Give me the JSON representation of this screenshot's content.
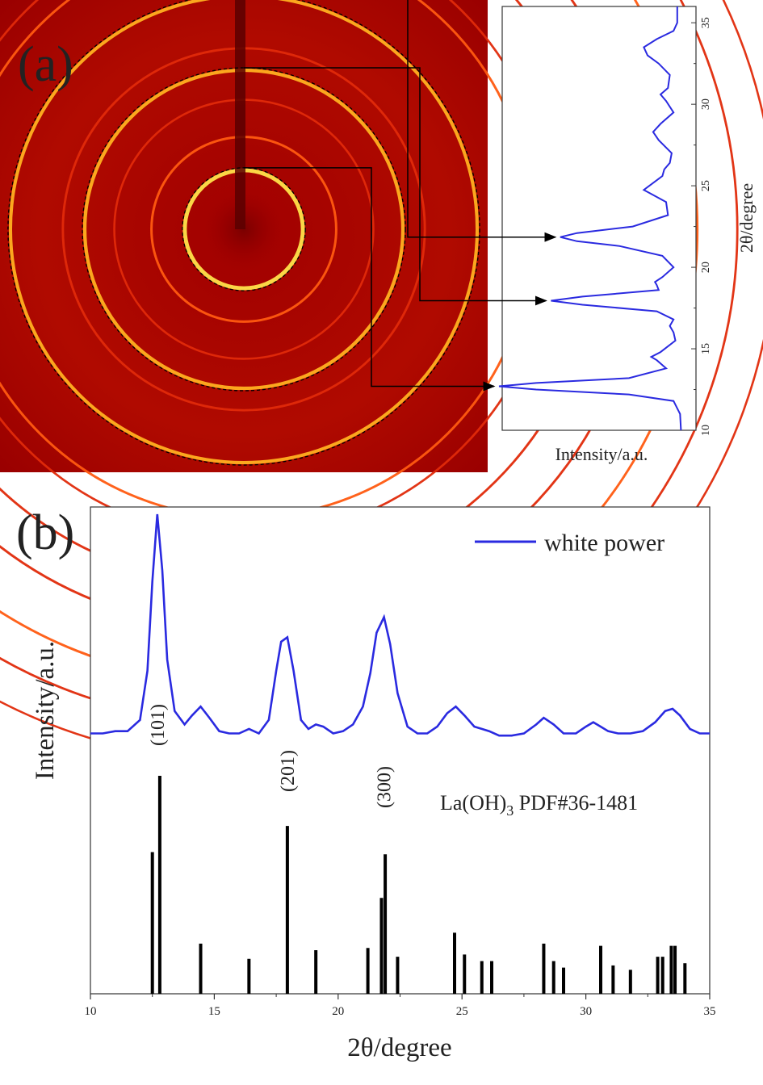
{
  "chart_data": [
    {
      "panel": "a",
      "type": "diffraction pattern with radial intensity profile",
      "panel_label": "(a)",
      "profile": {
        "type": "line",
        "orientation": "rotated: 2θ runs vertically (10 at bottom to 35 at top), intensity horizontally",
        "xlabel": "Intensity/a.u.",
        "ylabel": "2θ/degree",
        "ylim": [
          10,
          36
        ],
        "yticks": [
          10,
          15,
          20,
          25,
          30,
          35
        ],
        "color": "#2a2ae0",
        "x_2theta": [
          10,
          11,
          11.8,
          12.2,
          12.5,
          12.7,
          12.9,
          13.2,
          13.8,
          14.3,
          14.5,
          14.8,
          15.5,
          16.0,
          16.4,
          16.8,
          17.3,
          17.7,
          17.95,
          18.2,
          18.6,
          18.9,
          19.1,
          19.4,
          20.0,
          20.7,
          21.3,
          21.6,
          21.85,
          22.1,
          22.5,
          23.2,
          24.0,
          24.5,
          24.75,
          25.0,
          25.6,
          26.0,
          26.4,
          27.0,
          27.8,
          28.3,
          28.8,
          29.5,
          30.2,
          30.6,
          31.0,
          31.8,
          32.5,
          33.0,
          33.5,
          34.0,
          34.5,
          35.0,
          36.0
        ],
        "y_intensity": [
          0.02,
          0.025,
          0.06,
          0.3,
          0.8,
          1.0,
          0.8,
          0.3,
          0.1,
          0.15,
          0.18,
          0.13,
          0.05,
          0.06,
          0.08,
          0.06,
          0.15,
          0.55,
          0.72,
          0.55,
          0.14,
          0.15,
          0.16,
          0.12,
          0.06,
          0.12,
          0.35,
          0.58,
          0.67,
          0.58,
          0.28,
          0.09,
          0.1,
          0.18,
          0.22,
          0.19,
          0.12,
          0.11,
          0.08,
          0.07,
          0.14,
          0.17,
          0.13,
          0.06,
          0.1,
          0.13,
          0.09,
          0.08,
          0.14,
          0.2,
          0.22,
          0.15,
          0.06,
          0.04,
          0.04
        ]
      },
      "ring_links_2theta": [
        12.7,
        17.95,
        21.85
      ]
    },
    {
      "panel": "b",
      "type": "line",
      "panel_label": "(b)",
      "xlabel": "2θ/degree",
      "ylabel": "Intensity/a.u.",
      "xlim": [
        10,
        35
      ],
      "xticks": [
        10,
        15,
        20,
        25,
        30,
        35
      ],
      "legend": {
        "placement": "top-right",
        "label": "white power"
      },
      "series": [
        {
          "name": "white power",
          "color": "#2a2ae0",
          "x": [
            10,
            10.5,
            11,
            11.5,
            12,
            12.3,
            12.5,
            12.7,
            12.9,
            13.1,
            13.4,
            13.8,
            14.1,
            14.45,
            14.8,
            15.2,
            15.6,
            16.0,
            16.4,
            16.8,
            17.2,
            17.5,
            17.7,
            17.95,
            18.2,
            18.5,
            18.8,
            19.1,
            19.4,
            19.8,
            20.2,
            20.6,
            21.0,
            21.3,
            21.55,
            21.85,
            22.1,
            22.4,
            22.8,
            23.2,
            23.6,
            24.0,
            24.4,
            24.75,
            25.1,
            25.5,
            25.8,
            26.1,
            26.5,
            27.0,
            27.5,
            28.0,
            28.3,
            28.7,
            29.1,
            29.6,
            30.0,
            30.3,
            30.6,
            30.9,
            31.3,
            31.8,
            32.3,
            32.8,
            33.2,
            33.5,
            33.8,
            34.2,
            34.6,
            35.0
          ],
          "y": [
            0.02,
            0.02,
            0.03,
            0.03,
            0.08,
            0.3,
            0.7,
            1.0,
            0.75,
            0.35,
            0.12,
            0.06,
            0.1,
            0.14,
            0.09,
            0.03,
            0.02,
            0.02,
            0.04,
            0.02,
            0.08,
            0.3,
            0.43,
            0.45,
            0.3,
            0.08,
            0.04,
            0.06,
            0.05,
            0.02,
            0.03,
            0.06,
            0.14,
            0.29,
            0.47,
            0.54,
            0.42,
            0.2,
            0.05,
            0.02,
            0.02,
            0.05,
            0.11,
            0.14,
            0.1,
            0.05,
            0.04,
            0.03,
            0.01,
            0.01,
            0.02,
            0.06,
            0.09,
            0.06,
            0.02,
            0.02,
            0.05,
            0.07,
            0.05,
            0.03,
            0.02,
            0.02,
            0.03,
            0.07,
            0.12,
            0.13,
            0.1,
            0.04,
            0.02,
            0.02
          ]
        }
      ],
      "peak_labels": [
        {
          "label": "(101)",
          "x": 12.7
        },
        {
          "label": "(201)",
          "x": 17.95
        },
        {
          "label": "(300)",
          "x": 21.85
        }
      ],
      "reference": {
        "label_prefix": "La(OH)",
        "label_subscript": "3",
        "label_suffix": " PDF#36-1481",
        "type": "stick pattern",
        "sticks": [
          {
            "x": 12.5,
            "h": 0.65
          },
          {
            "x": 12.8,
            "h": 1.0
          },
          {
            "x": 14.45,
            "h": 0.23
          },
          {
            "x": 16.4,
            "h": 0.16
          },
          {
            "x": 17.95,
            "h": 0.77
          },
          {
            "x": 19.1,
            "h": 0.2
          },
          {
            "x": 21.2,
            "h": 0.21
          },
          {
            "x": 21.75,
            "h": 0.44
          },
          {
            "x": 21.9,
            "h": 0.64
          },
          {
            "x": 22.4,
            "h": 0.17
          },
          {
            "x": 24.7,
            "h": 0.28
          },
          {
            "x": 25.1,
            "h": 0.18
          },
          {
            "x": 25.8,
            "h": 0.15
          },
          {
            "x": 26.2,
            "h": 0.15
          },
          {
            "x": 28.3,
            "h": 0.23
          },
          {
            "x": 28.7,
            "h": 0.15
          },
          {
            "x": 29.1,
            "h": 0.12
          },
          {
            "x": 30.6,
            "h": 0.22
          },
          {
            "x": 31.1,
            "h": 0.13
          },
          {
            "x": 31.8,
            "h": 0.11
          },
          {
            "x": 32.9,
            "h": 0.17
          },
          {
            "x": 33.1,
            "h": 0.17
          },
          {
            "x": 33.45,
            "h": 0.22
          },
          {
            "x": 33.6,
            "h": 0.22
          },
          {
            "x": 34.0,
            "h": 0.14
          }
        ]
      }
    }
  ]
}
